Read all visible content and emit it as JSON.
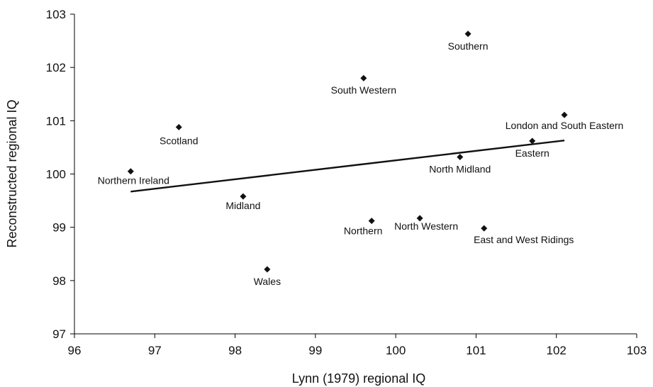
{
  "chart_data": {
    "type": "scatter",
    "title": "",
    "xlabel": "Lynn (1979) regional IQ",
    "ylabel": "Reconstructed regional IQ",
    "xlim": [
      96,
      103
    ],
    "ylim": [
      97,
      103
    ],
    "x_ticks": [
      "96",
      "97",
      "98",
      "99",
      "100",
      "101",
      "102",
      "103"
    ],
    "y_ticks": [
      "97",
      "98",
      "99",
      "100",
      "101",
      "102",
      "103"
    ],
    "grid": false,
    "marker": "diamond",
    "color": "#111111",
    "points": [
      {
        "label": "Southern",
        "x": 100.9,
        "y": 102.63
      },
      {
        "label": "South Western",
        "x": 99.6,
        "y": 101.8
      },
      {
        "label": "London and South Eastern",
        "x": 102.1,
        "y": 101.11
      },
      {
        "label": "Scotland",
        "x": 97.3,
        "y": 100.88
      },
      {
        "label": "Eastern",
        "x": 101.7,
        "y": 100.62
      },
      {
        "label": "North Midland",
        "x": 100.8,
        "y": 100.32
      },
      {
        "label": "Northern Ireland",
        "x": 96.7,
        "y": 100.05
      },
      {
        "label": "Midland",
        "x": 98.1,
        "y": 99.58
      },
      {
        "label": "Northern",
        "x": 99.7,
        "y": 99.12
      },
      {
        "label": "North Western",
        "x": 100.3,
        "y": 99.17
      },
      {
        "label": "East and West Ridings",
        "x": 101.1,
        "y": 98.98
      },
      {
        "label": "Wales",
        "x": 98.4,
        "y": 98.21
      }
    ],
    "trendline": {
      "x": [
        96.7,
        102.1
      ],
      "y": [
        99.67,
        100.63
      ]
    }
  }
}
